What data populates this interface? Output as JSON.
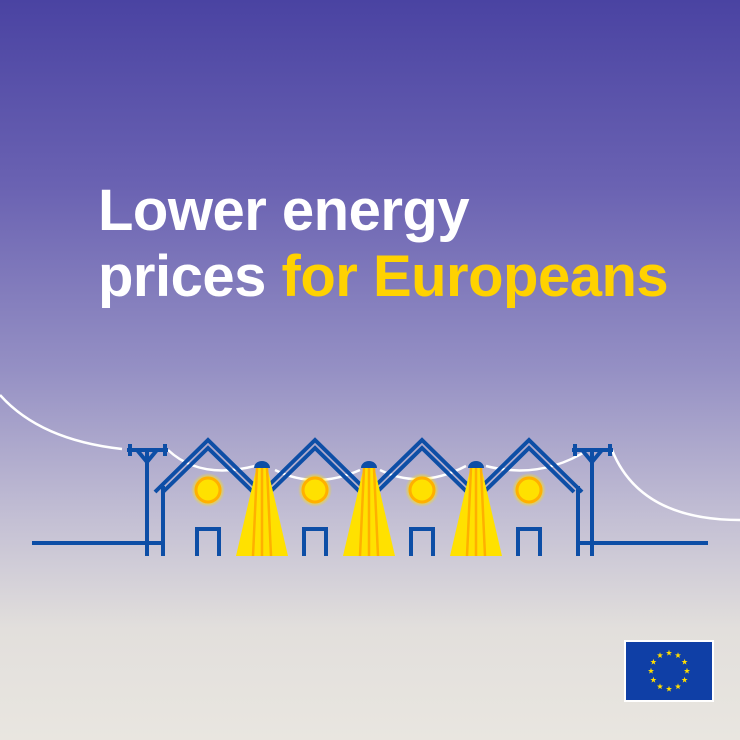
{
  "headline": {
    "line1": "Lower energy",
    "line2_white": "prices",
    "line2_highlight": "for Europeans"
  },
  "colors": {
    "background_top": "#4a43a2",
    "background_bottom": "#e9e6e0",
    "text_white": "#ffffff",
    "highlight_yellow": "#ffd200",
    "line_blue": "#0d4ea6",
    "light_yellow": "#ffe100",
    "light_orange": "#ffb000",
    "flag_blue": "#0f3fa6"
  },
  "illustration": {
    "houses": 4,
    "street_lamps": 3,
    "utility_poles": 2
  },
  "logo": {
    "name": "eu-flag",
    "stars": 12
  }
}
